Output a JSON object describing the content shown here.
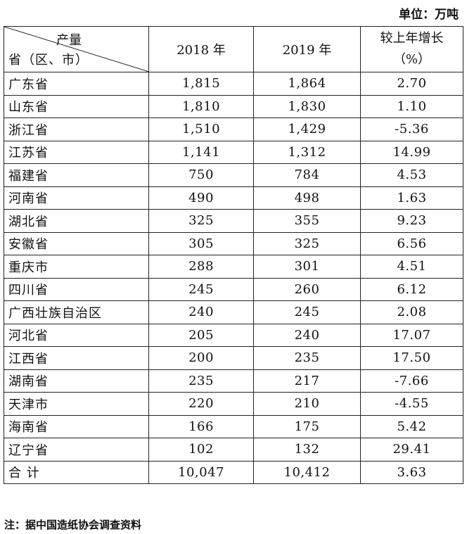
{
  "unit_label": "单位：万吨",
  "header": {
    "diag_top": "产量",
    "diag_bottom": "省（区、市）",
    "col_2018": "2018 年",
    "col_2019": "2019 年",
    "growth_line1": "较上年增长",
    "growth_line2": "（%）"
  },
  "rows": [
    {
      "name": "广东省",
      "y2018": "1,815",
      "y2019": "1,864",
      "growth": "2.70"
    },
    {
      "name": "山东省",
      "y2018": "1,810",
      "y2019": "1,830",
      "growth": "1.10"
    },
    {
      "name": "浙江省",
      "y2018": "1,510",
      "y2019": "1,429",
      "growth": "-5.36"
    },
    {
      "name": "江苏省",
      "y2018": "1,141",
      "y2019": "1,312",
      "growth": "14.99"
    },
    {
      "name": "福建省",
      "y2018": "750",
      "y2019": "784",
      "growth": "4.53"
    },
    {
      "name": "河南省",
      "y2018": "490",
      "y2019": "498",
      "growth": "1.63"
    },
    {
      "name": "湖北省",
      "y2018": "325",
      "y2019": "355",
      "growth": "9.23"
    },
    {
      "name": "安徽省",
      "y2018": "305",
      "y2019": "325",
      "growth": "6.56"
    },
    {
      "name": "重庆市",
      "y2018": "288",
      "y2019": "301",
      "growth": "4.51"
    },
    {
      "name": "四川省",
      "y2018": "245",
      "y2019": "260",
      "growth": "6.12"
    },
    {
      "name": "广西壮族自治区",
      "y2018": "240",
      "y2019": "245",
      "growth": "2.08"
    },
    {
      "name": "河北省",
      "y2018": "205",
      "y2019": "240",
      "growth": "17.07"
    },
    {
      "name": "江西省",
      "y2018": "200",
      "y2019": "235",
      "growth": "17.50"
    },
    {
      "name": "湖南省",
      "y2018": "235",
      "y2019": "217",
      "growth": "-7.66"
    },
    {
      "name": "天津市",
      "y2018": "220",
      "y2019": "210",
      "growth": "-4.55"
    },
    {
      "name": "海南省",
      "y2018": "166",
      "y2019": "175",
      "growth": "5.42"
    },
    {
      "name": "辽宁省",
      "y2018": "102",
      "y2019": "132",
      "growth": "29.41"
    },
    {
      "name": "合 计",
      "y2018": "10,047",
      "y2019": "10,412",
      "growth": "3.63"
    }
  ],
  "note": "注：据中国造纸协会调查资料"
}
